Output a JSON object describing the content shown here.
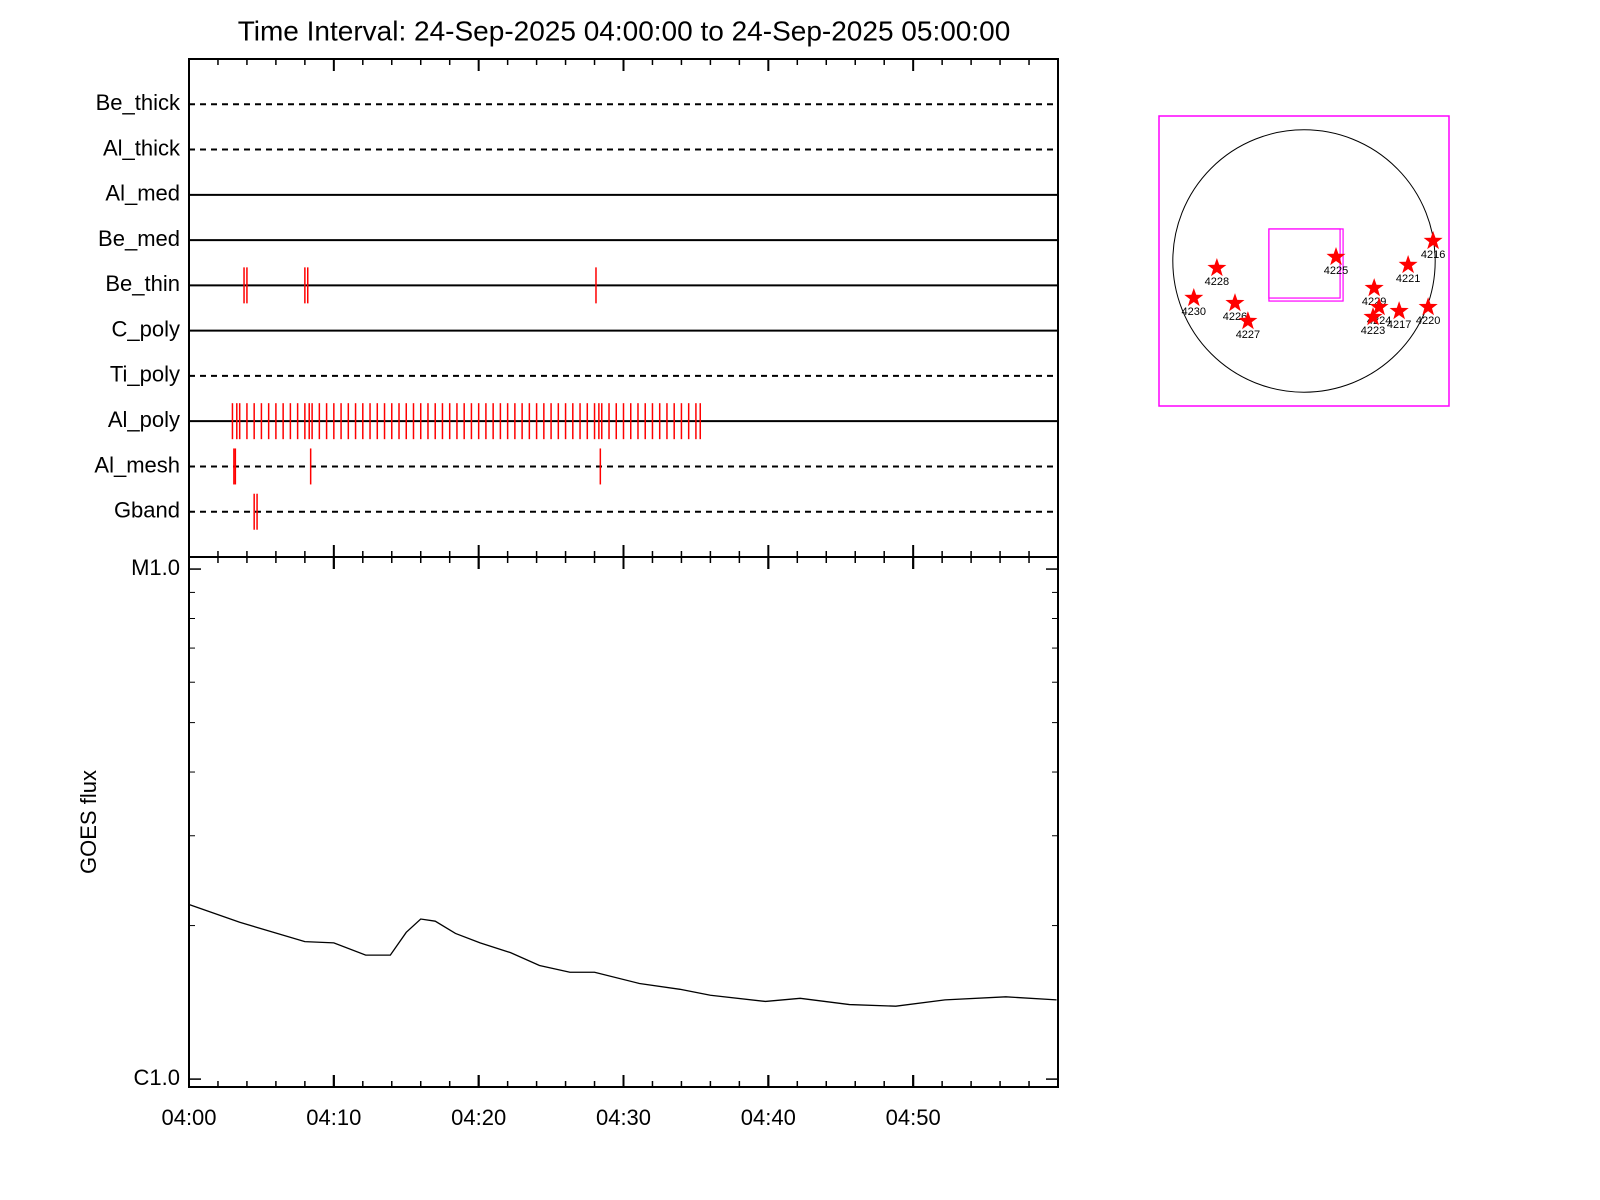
{
  "chart_data": [
    {
      "type": "timeline",
      "title": "Time Interval: 24-Sep-2025 04:00:00 to 24-Sep-2025 05:00:00",
      "xlim": [
        0,
        60
      ],
      "event_color": "#ff0000",
      "rows": [
        {
          "name": "Be_thick",
          "linestyle": "dashed",
          "events": []
        },
        {
          "name": "Al_thick",
          "linestyle": "dashed",
          "events": []
        },
        {
          "name": "Al_med",
          "linestyle": "solid",
          "events": []
        },
        {
          "name": "Be_med",
          "linestyle": "solid",
          "events": []
        },
        {
          "name": "Be_thin",
          "linestyle": "solid",
          "events": [
            3.8,
            4.0,
            8.0,
            8.2,
            28.1
          ]
        },
        {
          "name": "C_poly",
          "linestyle": "solid",
          "events": []
        },
        {
          "name": "Ti_poly",
          "linestyle": "dashed",
          "events": []
        },
        {
          "name": "Al_poly",
          "linestyle": "solid",
          "events": [
            3.0,
            3.3,
            3.5,
            4.0,
            4.5,
            5.0,
            5.5,
            6.0,
            6.5,
            7.0,
            7.5,
            8.0,
            8.3,
            8.5,
            9.0,
            9.5,
            10.0,
            10.5,
            11.0,
            11.5,
            12.0,
            12.5,
            13.0,
            13.5,
            14.0,
            14.5,
            15.0,
            15.5,
            16.0,
            16.5,
            17.0,
            17.5,
            18.0,
            18.5,
            19.0,
            19.5,
            20.0,
            20.5,
            21.0,
            21.5,
            22.0,
            22.5,
            23.0,
            23.5,
            24.0,
            24.5,
            25.0,
            25.5,
            26.0,
            26.5,
            27.0,
            27.5,
            28.0,
            28.3,
            28.5,
            29.0,
            29.5,
            30.0,
            30.5,
            31.0,
            31.5,
            32.0,
            32.5,
            33.0,
            33.5,
            34.0,
            34.5,
            35.0,
            35.3
          ]
        },
        {
          "name": "Al_mesh",
          "linestyle": "dashed",
          "events": [
            3.1,
            3.2,
            8.4,
            28.4
          ]
        },
        {
          "name": "Gband",
          "linestyle": "dashed",
          "events": [
            4.5,
            4.7
          ]
        }
      ]
    },
    {
      "type": "line",
      "ylabel": "GOES flux",
      "log_y": true,
      "color": "#000000",
      "xlim": [
        0,
        60
      ],
      "xticks": [
        {
          "value": 0,
          "label": "04:00"
        },
        {
          "value": 10,
          "label": "04:10"
        },
        {
          "value": 20,
          "label": "04:20"
        },
        {
          "value": 30,
          "label": "04:30"
        },
        {
          "value": 40,
          "label": "04:40"
        },
        {
          "value": 50,
          "label": "04:50"
        }
      ],
      "ylim": [
        9.65e-07,
        1.056e-05
      ],
      "yticks": [
        {
          "value": 1e-06,
          "label": "C1.0"
        },
        {
          "value": 1e-05,
          "label": "M1.0"
        }
      ],
      "x": [
        0,
        3.5,
        8,
        10,
        12.2,
        13.9,
        15,
        16,
        17,
        18.4,
        20.1,
        22.2,
        24.2,
        26.3,
        28,
        31.1,
        33.9,
        36,
        39.8,
        42.2,
        45.6,
        48.8,
        52.2,
        56.4,
        59.9
      ],
      "series": [
        {
          "values": [
            2.2e-06,
            2.03e-06,
            1.86e-06,
            1.85e-06,
            1.75e-06,
            1.75e-06,
            1.94e-06,
            2.06e-06,
            2.04e-06,
            1.93e-06,
            1.85e-06,
            1.77e-06,
            1.67e-06,
            1.62e-06,
            1.62e-06,
            1.54e-06,
            1.5e-06,
            1.46e-06,
            1.42e-06,
            1.44e-06,
            1.4e-06,
            1.39e-06,
            1.43e-06,
            1.45e-06,
            1.43e-06
          ]
        }
      ]
    },
    {
      "type": "map",
      "xlim": [
        -1050,
        1050
      ],
      "ylim": [
        -1050,
        1050
      ],
      "disk_radius": 950,
      "box_color": "#ff00ff",
      "marker_color": "#ff0000",
      "fov": {
        "x": [
          -254,
          283
        ],
        "y": [
          -290,
          232
        ]
      },
      "regions": [
        {
          "name": "4216",
          "x": 935,
          "y": 145
        },
        {
          "name": "4225",
          "x": 232,
          "y": 29
        },
        {
          "name": "4221",
          "x": 754,
          "y": -29
        },
        {
          "name": "4228",
          "x": -631,
          "y": -51
        },
        {
          "name": "4229",
          "x": 508,
          "y": -196
        },
        {
          "name": "4230",
          "x": -798,
          "y": -268
        },
        {
          "name": "4226",
          "x": -500,
          "y": -305
        },
        {
          "name": "4224",
          "x": 544,
          "y": -334
        },
        {
          "name": "4217",
          "x": 689,
          "y": -363
        },
        {
          "name": "4220",
          "x": 899,
          "y": -334
        },
        {
          "name": "4223",
          "x": 500,
          "y": -406
        },
        {
          "name": "4227",
          "x": -406,
          "y": -435
        }
      ]
    }
  ]
}
